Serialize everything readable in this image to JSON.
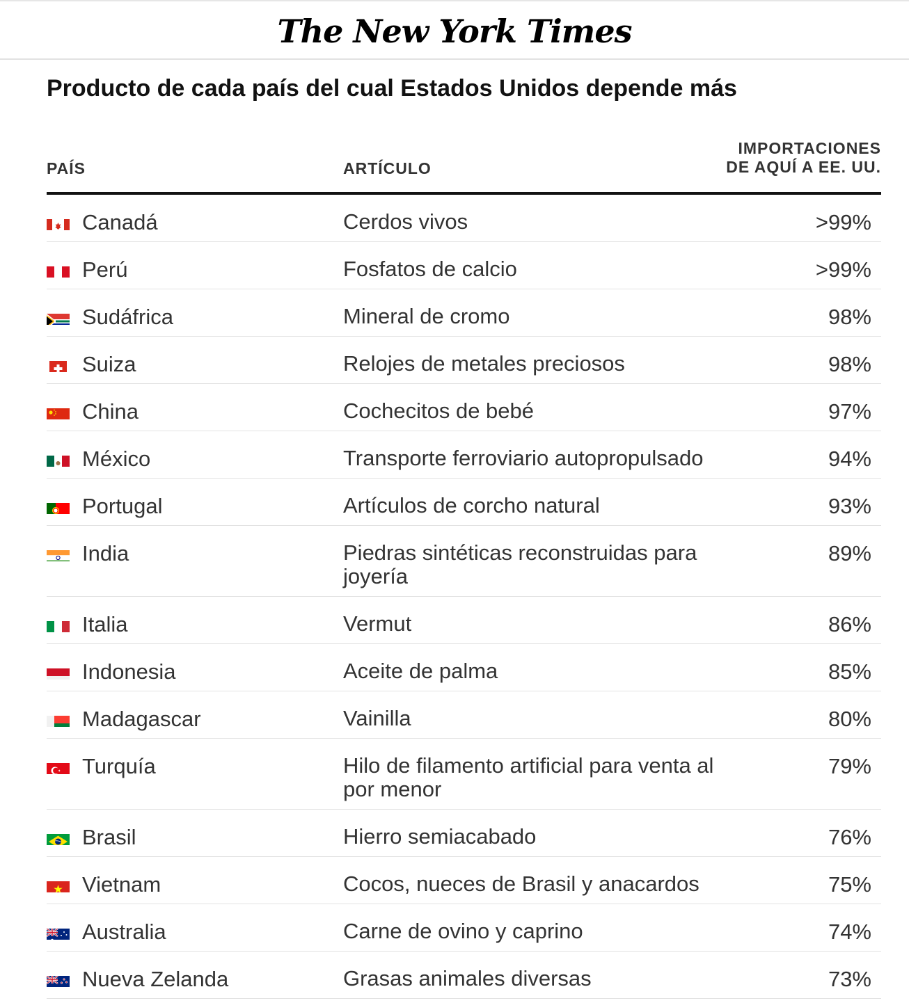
{
  "masthead": {
    "logo_text": "The New York Times"
  },
  "title": "Producto de cada país del cual Estados Unidos depende más",
  "columns": {
    "country": "PAÍS",
    "item": "ARTÍCULO",
    "pct_line1": "IMPORTACIONES",
    "pct_line2": "DE AQUÍ A EE. UU."
  },
  "rows": [
    {
      "country": "Canadá",
      "flag": "canada-flag",
      "item": "Cerdos vivos",
      "pct": ">99%"
    },
    {
      "country": "Perú",
      "flag": "peru-flag",
      "item": "Fosfatos de calcio",
      "pct": ">99%"
    },
    {
      "country": "Sudáfrica",
      "flag": "south-africa-flag",
      "item": "Mineral de cromo",
      "pct": "98%"
    },
    {
      "country": "Suiza",
      "flag": "switzerland-flag",
      "item": "Relojes de metales preciosos",
      "pct": "98%"
    },
    {
      "country": "China",
      "flag": "china-flag",
      "item": "Cochecitos de bebé",
      "pct": "97%"
    },
    {
      "country": "México",
      "flag": "mexico-flag",
      "item": "Transporte ferroviario autopropulsado",
      "pct": "94%"
    },
    {
      "country": "Portugal",
      "flag": "portugal-flag",
      "item": "Artículos de corcho natural",
      "pct": "93%"
    },
    {
      "country": "India",
      "flag": "india-flag",
      "item": "Piedras sintéticas reconstruidas para joyería",
      "pct": "89%"
    },
    {
      "country": "Italia",
      "flag": "italy-flag",
      "item": "Vermut",
      "pct": "86%"
    },
    {
      "country": "Indonesia",
      "flag": "indonesia-flag",
      "item": "Aceite de palma",
      "pct": "85%"
    },
    {
      "country": "Madagascar",
      "flag": "madagascar-flag",
      "item": "Vainilla",
      "pct": "80%"
    },
    {
      "country": "Turquía",
      "flag": "turkey-flag",
      "item": "Hilo de filamento artificial para venta al por menor",
      "pct": "79%"
    },
    {
      "country": "Brasil",
      "flag": "brazil-flag",
      "item": "Hierro semiacabado",
      "pct": "76%"
    },
    {
      "country": "Vietnam",
      "flag": "vietnam-flag",
      "item": "Cocos, nueces de Brasil y anacardos",
      "pct": "75%"
    },
    {
      "country": "Australia",
      "flag": "australia-flag",
      "item": "Carne de ovino y caprino",
      "pct": "74%"
    },
    {
      "country": "Nueva Zelanda",
      "flag": "new-zealand-flag",
      "item": "Grasas animales diversas",
      "pct": "73%"
    }
  ]
}
